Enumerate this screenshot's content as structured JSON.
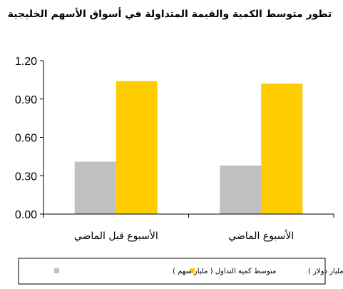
{
  "chart_data": {
    "type": "bar",
    "title": "تطور متوسط الكمية والقيمة المتداولة في أسواق الأسهم الخليجية",
    "categories": [
      "الأسبوع قبل الماضي",
      "الأسبوع الماضي"
    ],
    "series": [
      {
        "name": "متوسط كمية التداول ( مليار سهم )",
        "values": [
          0.41,
          0.38
        ],
        "color": "#c0c0c0"
      },
      {
        "name": "متوسط قيمة التداول ( مليار دولار )",
        "values": [
          1.04,
          1.02
        ],
        "color": "#ffcc00"
      }
    ],
    "ylim": [
      0,
      1.2
    ],
    "yticks": [
      "0.00",
      "0.30",
      "0.60",
      "0.90",
      "1.20"
    ],
    "grid": false,
    "legend_position": "bottom"
  }
}
